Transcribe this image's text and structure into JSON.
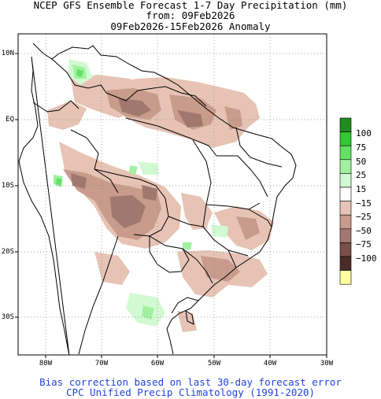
{
  "header": {
    "title_line1": "NCEP GFS Ensemble Forecast 1-7 Day Precipitation (mm)",
    "title_line2": "from: 09Feb2026",
    "title_line3": "09Feb2026-15Feb2026 Anomaly"
  },
  "axes": {
    "lat_labels": [
      "10N",
      "EQ",
      "10S",
      "20S",
      "30S"
    ],
    "lon_labels": [
      "80W",
      "70W",
      "60W",
      "50W",
      "40W",
      "30W"
    ]
  },
  "colorbar": {
    "colors": [
      "#1e8c1e",
      "#32c832",
      "#64e164",
      "#a0f0a0",
      "#d2fad2",
      "#ffffff",
      "#e6c3b4",
      "#c89b8c",
      "#a0786e",
      "#785046",
      "#4b2d28",
      "#ffffa0"
    ],
    "labels": [
      "100",
      "75",
      "50",
      "25",
      "15",
      "−15",
      "−25",
      "−50",
      "−75",
      "−100"
    ]
  },
  "footer": {
    "line1": "Bias correction based on last 30-day forecast error",
    "line2": "CPC Unified Precip Climatology (1991-2020)"
  }
}
